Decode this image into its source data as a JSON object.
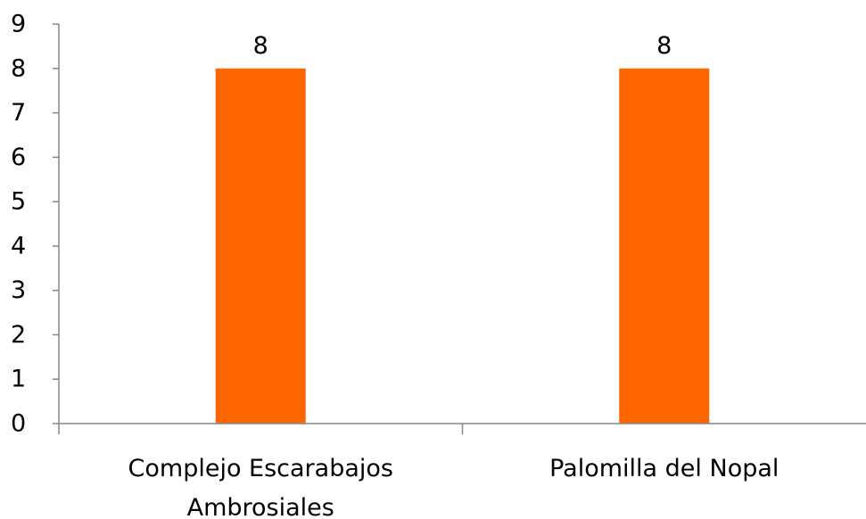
{
  "chart_data": {
    "type": "bar",
    "categories": [
      [
        "Complejo Escarabajos",
        "Ambrosiales"
      ],
      [
        "Palomilla del Nopal"
      ]
    ],
    "values": [
      8,
      8
    ],
    "data_labels": [
      "8",
      "8"
    ],
    "y_ticks": [
      "0",
      "1",
      "2",
      "3",
      "4",
      "5",
      "6",
      "7",
      "8",
      "9"
    ],
    "ylim": [
      0,
      9
    ],
    "title": "",
    "xlabel": "",
    "ylabel": "",
    "grid": false,
    "legend": "none",
    "bar_color": "#FF6600"
  }
}
